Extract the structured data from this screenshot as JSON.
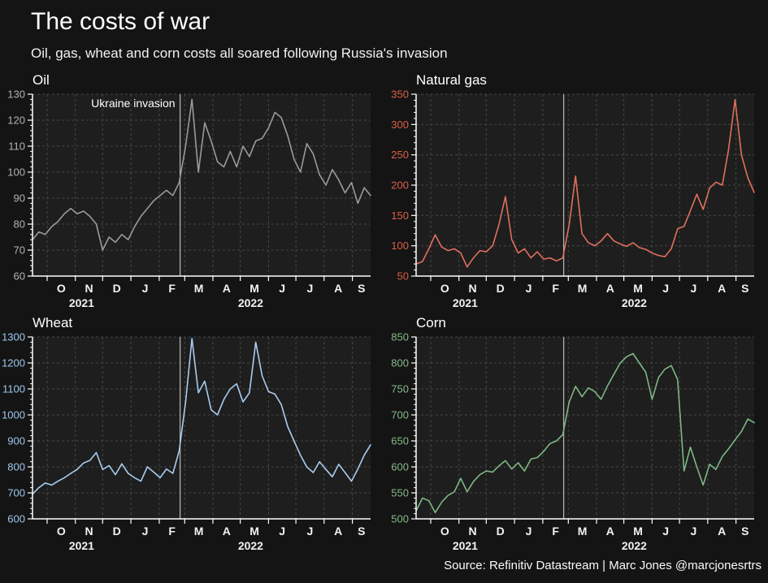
{
  "header": {
    "title": "The costs of war",
    "subtitle": "Oil, gas, wheat and corn costs all soared following Russia's invasion"
  },
  "source": "Source: Refinitiv Datastream | Marc Jones @marcjonesrtrs",
  "colors": {
    "background": "#141414",
    "plot_background": "#1e1e1e",
    "grid": "#464646",
    "axis": "#ffffff",
    "invasion_line": "#b0b0b0"
  },
  "chart_data": {
    "type": "line",
    "x_axis": {
      "total_weeks": 53,
      "month_labels": [
        "O",
        "N",
        "D",
        "J",
        "F",
        "M",
        "A",
        "M",
        "J",
        "J",
        "A",
        "S"
      ],
      "month_tick_weeks": [
        2.29,
        6.71,
        11.0,
        15.43,
        19.86,
        23.86,
        28.29,
        32.57,
        37.0,
        41.29,
        45.71,
        50.14
      ],
      "month_label_weeks": [
        4.5,
        8.86,
        13.21,
        17.64,
        21.86,
        26.07,
        30.43,
        34.79,
        39.14,
        43.5,
        47.93,
        51.57
      ],
      "year_labels": [
        {
          "label": "2021",
          "week": 7.7
        },
        {
          "label": "2022",
          "week": 34.2
        }
      ],
      "invasion_week": 23.14
    },
    "annotation_label": "Ukraine invasion",
    "charts": [
      {
        "id": "oil",
        "title": "Oil",
        "color": "#9a9a9a",
        "tick_color": "#b3b3b3",
        "ylim": [
          60,
          130
        ],
        "ytick_step": 10,
        "minor_step": 2,
        "show_annotation": true,
        "values": [
          74,
          77,
          76,
          79,
          81,
          84,
          86,
          84,
          85,
          83,
          80,
          70,
          75,
          73,
          76,
          74,
          79,
          83,
          86,
          89,
          91,
          93,
          91,
          96,
          110,
          128,
          100,
          119,
          112,
          104,
          102,
          108,
          102,
          110,
          106,
          112,
          113,
          117,
          123,
          121,
          114,
          105,
          100,
          111,
          107,
          99,
          95,
          101,
          97,
          92,
          96,
          88,
          94,
          91
        ]
      },
      {
        "id": "natural-gas",
        "title": "Natural gas",
        "color": "#e0705c",
        "tick_color": "#dd5f48",
        "ylim": [
          50,
          350
        ],
        "ytick_step": 50,
        "minor_step": 10,
        "show_annotation": false,
        "values": [
          70,
          74,
          95,
          118,
          98,
          92,
          95,
          88,
          65,
          80,
          92,
          90,
          100,
          135,
          181,
          110,
          88,
          95,
          80,
          90,
          78,
          80,
          75,
          80,
          135,
          215,
          120,
          105,
          100,
          108,
          120,
          108,
          103,
          99,
          105,
          97,
          94,
          88,
          84,
          82,
          95,
          128,
          132,
          158,
          185,
          160,
          195,
          205,
          200,
          260,
          341,
          250,
          212,
          188
        ]
      },
      {
        "id": "wheat",
        "title": "Wheat",
        "color": "#a9cdf0",
        "tick_color": "#9ec6ef",
        "ylim": [
          600,
          1300
        ],
        "ytick_step": 100,
        "minor_step": 20,
        "show_annotation": false,
        "values": [
          695,
          720,
          738,
          730,
          745,
          758,
          775,
          790,
          815,
          825,
          855,
          790,
          805,
          770,
          812,
          775,
          758,
          745,
          800,
          780,
          758,
          792,
          775,
          862,
          1050,
          1294,
          1085,
          1130,
          1020,
          1000,
          1060,
          1100,
          1120,
          1050,
          1085,
          1280,
          1150,
          1090,
          1080,
          1040,
          955,
          900,
          845,
          800,
          778,
          820,
          790,
          762,
          810,
          778,
          745,
          792,
          845,
          885
        ]
      },
      {
        "id": "corn",
        "title": "Corn",
        "color": "#7db884",
        "tick_color": "#86b989",
        "ylim": [
          500,
          850
        ],
        "ytick_step": 50,
        "minor_step": 10,
        "show_annotation": false,
        "values": [
          515,
          540,
          535,
          512,
          532,
          545,
          552,
          578,
          552,
          572,
          585,
          592,
          590,
          602,
          612,
          596,
          608,
          592,
          615,
          618,
          630,
          645,
          650,
          662,
          725,
          755,
          735,
          752,
          745,
          730,
          756,
          778,
          800,
          812,
          818,
          800,
          782,
          730,
          772,
          788,
          795,
          768,
          592,
          638,
          600,
          565,
          605,
          595,
          620,
          635,
          652,
          668,
          692,
          685
        ]
      }
    ]
  }
}
